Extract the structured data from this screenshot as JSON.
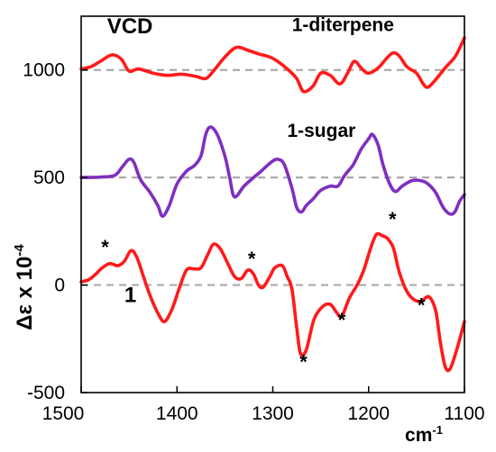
{
  "chart_data": {
    "type": "line",
    "title": "VCD",
    "xlabel": "cm⁻¹",
    "ylabel": "Δε x 10⁻⁴",
    "xlim": [
      1500,
      1100
    ],
    "ylim": [
      -500,
      1250
    ],
    "x_reversed": true,
    "xticks": [
      1500,
      1400,
      1300,
      1200,
      1100
    ],
    "yticks": [
      -500,
      0,
      500,
      1000
    ],
    "xtick_labels": [
      "1500",
      "1400",
      "1300",
      "1200",
      "1100"
    ],
    "ytick_labels": [
      "-500",
      "0",
      "500",
      "1000"
    ],
    "baselines": [
      0,
      500,
      1000
    ],
    "grid": false,
    "series": [
      {
        "name": "1-diterpene",
        "color": "#ff1a1a",
        "points": [
          [
            1500,
            1005
          ],
          [
            1490,
            1015
          ],
          [
            1480,
            1040
          ],
          [
            1468,
            1070
          ],
          [
            1458,
            1050
          ],
          [
            1450,
            995
          ],
          [
            1440,
            1005
          ],
          [
            1425,
            985
          ],
          [
            1410,
            975
          ],
          [
            1395,
            980
          ],
          [
            1380,
            970
          ],
          [
            1370,
            960
          ],
          [
            1362,
            995
          ],
          [
            1350,
            1060
          ],
          [
            1338,
            1105
          ],
          [
            1325,
            1090
          ],
          [
            1315,
            1075
          ],
          [
            1303,
            1060
          ],
          [
            1295,
            1040
          ],
          [
            1285,
            1005
          ],
          [
            1275,
            960
          ],
          [
            1268,
            900
          ],
          [
            1258,
            925
          ],
          [
            1250,
            985
          ],
          [
            1240,
            975
          ],
          [
            1230,
            935
          ],
          [
            1222,
            985
          ],
          [
            1215,
            1040
          ],
          [
            1207,
            1005
          ],
          [
            1200,
            985
          ],
          [
            1190,
            1010
          ],
          [
            1180,
            1060
          ],
          [
            1174,
            1080
          ],
          [
            1168,
            1065
          ],
          [
            1160,
            1015
          ],
          [
            1150,
            985
          ],
          [
            1143,
            935
          ],
          [
            1138,
            920
          ],
          [
            1130,
            955
          ],
          [
            1120,
            1010
          ],
          [
            1110,
            1060
          ],
          [
            1103,
            1120
          ],
          [
            1100,
            1150
          ]
        ]
      },
      {
        "name": "1-sugar",
        "color": "#7f2fbf",
        "points": [
          [
            1500,
            500
          ],
          [
            1480,
            502
          ],
          [
            1465,
            510
          ],
          [
            1457,
            550
          ],
          [
            1450,
            585
          ],
          [
            1445,
            570
          ],
          [
            1438,
            490
          ],
          [
            1428,
            430
          ],
          [
            1420,
            370
          ],
          [
            1415,
            320
          ],
          [
            1408,
            370
          ],
          [
            1400,
            470
          ],
          [
            1390,
            530
          ],
          [
            1382,
            555
          ],
          [
            1375,
            600
          ],
          [
            1370,
            700
          ],
          [
            1365,
            735
          ],
          [
            1358,
            700
          ],
          [
            1350,
            600
          ],
          [
            1345,
            500
          ],
          [
            1340,
            410
          ],
          [
            1330,
            460
          ],
          [
            1320,
            500
          ],
          [
            1312,
            530
          ],
          [
            1302,
            570
          ],
          [
            1295,
            585
          ],
          [
            1288,
            560
          ],
          [
            1280,
            450
          ],
          [
            1275,
            360
          ],
          [
            1270,
            340
          ],
          [
            1265,
            370
          ],
          [
            1258,
            400
          ],
          [
            1250,
            440
          ],
          [
            1240,
            460
          ],
          [
            1232,
            460
          ],
          [
            1225,
            510
          ],
          [
            1216,
            560
          ],
          [
            1208,
            630
          ],
          [
            1200,
            680
          ],
          [
            1196,
            700
          ],
          [
            1190,
            650
          ],
          [
            1185,
            560
          ],
          [
            1178,
            470
          ],
          [
            1172,
            435
          ],
          [
            1165,
            460
          ],
          [
            1155,
            485
          ],
          [
            1145,
            485
          ],
          [
            1138,
            470
          ],
          [
            1130,
            430
          ],
          [
            1122,
            360
          ],
          [
            1115,
            330
          ],
          [
            1110,
            340
          ],
          [
            1105,
            390
          ],
          [
            1100,
            420
          ]
        ]
      },
      {
        "name": "1",
        "color": "#ff1a1a",
        "points": [
          [
            1500,
            15
          ],
          [
            1492,
            25
          ],
          [
            1485,
            50
          ],
          [
            1478,
            80
          ],
          [
            1470,
            100
          ],
          [
            1462,
            90
          ],
          [
            1455,
            110
          ],
          [
            1448,
            160
          ],
          [
            1442,
            130
          ],
          [
            1435,
            40
          ],
          [
            1428,
            -50
          ],
          [
            1420,
            -130
          ],
          [
            1413,
            -170
          ],
          [
            1405,
            -110
          ],
          [
            1398,
            -20
          ],
          [
            1390,
            70
          ],
          [
            1382,
            75
          ],
          [
            1375,
            80
          ],
          [
            1368,
            140
          ],
          [
            1362,
            190
          ],
          [
            1355,
            170
          ],
          [
            1348,
            110
          ],
          [
            1340,
            40
          ],
          [
            1333,
            30
          ],
          [
            1326,
            70
          ],
          [
            1320,
            50
          ],
          [
            1315,
            0
          ],
          [
            1310,
            -10
          ],
          [
            1303,
            40
          ],
          [
            1298,
            80
          ],
          [
            1290,
            90
          ],
          [
            1285,
            40
          ],
          [
            1280,
            -20
          ],
          [
            1275,
            -200
          ],
          [
            1271,
            -320
          ],
          [
            1265,
            -300
          ],
          [
            1257,
            -160
          ],
          [
            1248,
            -100
          ],
          [
            1240,
            -90
          ],
          [
            1233,
            -130
          ],
          [
            1228,
            -145
          ],
          [
            1220,
            -60
          ],
          [
            1212,
            0
          ],
          [
            1205,
            70
          ],
          [
            1198,
            170
          ],
          [
            1192,
            235
          ],
          [
            1186,
            230
          ],
          [
            1180,
            215
          ],
          [
            1174,
            170
          ],
          [
            1168,
            60
          ],
          [
            1160,
            -30
          ],
          [
            1152,
            -70
          ],
          [
            1145,
            -75
          ],
          [
            1137,
            -55
          ],
          [
            1130,
            -120
          ],
          [
            1125,
            -270
          ],
          [
            1120,
            -380
          ],
          [
            1115,
            -390
          ],
          [
            1108,
            -300
          ],
          [
            1100,
            -170
          ]
        ]
      }
    ],
    "labels": [
      {
        "text": "VCD",
        "x": 1473,
        "y": 1170
      },
      {
        "text": "1-diterpene",
        "x": 1280,
        "y": 1180
      },
      {
        "text": "1-sugar",
        "x": 1285,
        "y": 690
      },
      {
        "text": "1",
        "x": 1455,
        "y": -80
      }
    ],
    "annotations": [
      {
        "text": "*",
        "x": 1475,
        "y": 145
      },
      {
        "text": "*",
        "x": 1322,
        "y": 90
      },
      {
        "text": "*",
        "x": 1268,
        "y": -390
      },
      {
        "text": "*",
        "x": 1228,
        "y": -195
      },
      {
        "text": "*",
        "x": 1175,
        "y": 275
      },
      {
        "text": "*",
        "x": 1145,
        "y": -125
      }
    ]
  }
}
